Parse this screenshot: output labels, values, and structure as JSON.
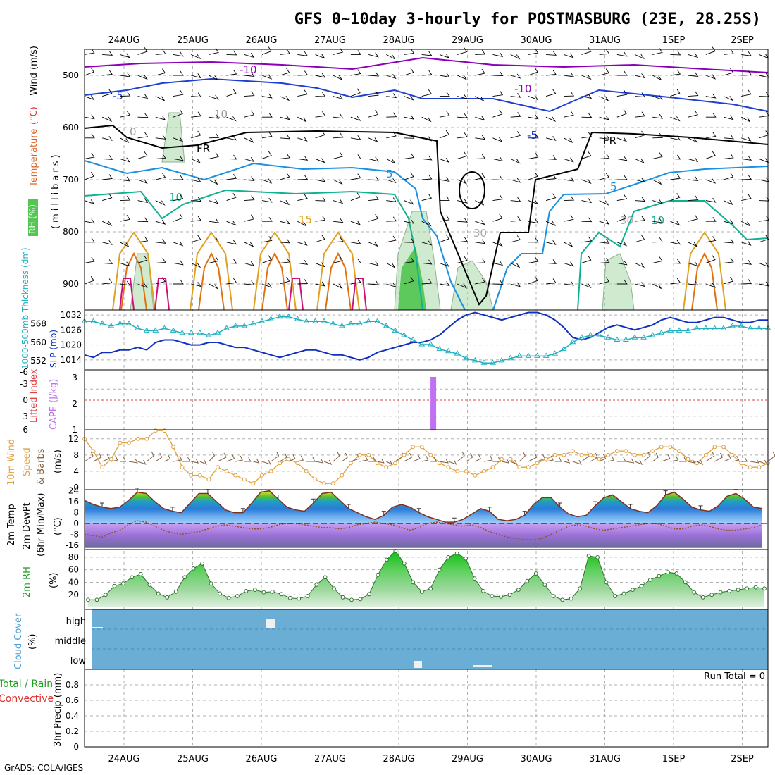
{
  "title": "GFS 0~10day 3-hourly for POSTMASBURG (23E, 28.25S)",
  "credit": "GrADS: COLA/IGES",
  "colors": {
    "temp_m10": "#8a00b8",
    "temp_m5": "#1e3fd0",
    "temp_5": "#1a90e0",
    "temp_10": "#10b090",
    "temp_15": "#e0a020",
    "temp_20": "#e07010",
    "temp_25": "#d0107a",
    "rh": "#40c040",
    "slp": "#1030c0",
    "thickness": "#20b0c0",
    "cape": "#c070f0",
    "li": "#e04040",
    "wind": "#e0a040",
    "barb": "#806040",
    "cloud": "#6aaed6",
    "rain": "#40c040",
    "conv": "#e03030"
  },
  "chart_data": [
    {
      "type": "line",
      "panel": "upper-air",
      "ylabel_temperature": "Temperature",
      "ylabel_unit": "(°C)",
      "ylabel_wind": "Wind (m/s)",
      "ylabel_rh": "RH (%)",
      "ylabel_pressure": "(millibars)",
      "ylim": [
        950,
        450
      ],
      "yticks": [
        "500",
        "600",
        "700",
        "800",
        "900"
      ],
      "contour_labels": [
        "-10",
        "-10",
        "-5",
        "-5",
        "5",
        "5",
        "10",
        "15",
        "10",
        "10",
        "FR",
        "FR",
        "0",
        "10",
        "30",
        "30"
      ],
      "x_dates": [
        "24AUG",
        "25AUG",
        "26AUG",
        "27AUG",
        "28AUG",
        "29AUG",
        "30AUG",
        "31AUG",
        "1SEP",
        "2SEP"
      ]
    },
    {
      "type": "line",
      "panel": "slp-thickness",
      "ylabel_thickness": "1000-500mb Thickness (dm)",
      "ylabel_slp": "SLP (mb)",
      "yticks_thickness": [
        "568",
        "560",
        "552"
      ],
      "yticks_slp": [
        "1032",
        "1026",
        "1020",
        "1014"
      ],
      "series": [
        {
          "name": "SLP",
          "values": [
            1016,
            1015,
            1017,
            1017,
            1018,
            1018,
            1019,
            1018,
            1021,
            1022,
            1022,
            1021,
            1020,
            1020,
            1021,
            1021,
            1020,
            1019,
            1019,
            1018,
            1017,
            1016,
            1015,
            1016,
            1017,
            1018,
            1018,
            1017,
            1016,
            1016,
            1015,
            1014,
            1015,
            1017,
            1018,
            1019,
            1020,
            1021,
            1021,
            1022,
            1024,
            1027,
            1030,
            1032,
            1033,
            1032,
            1031,
            1030,
            1031,
            1032,
            1033,
            1033,
            1032,
            1030,
            1027,
            1023,
            1022,
            1023,
            1025,
            1027,
            1028,
            1027,
            1026,
            1027,
            1028,
            1030,
            1031,
            1030,
            1029,
            1029,
            1030,
            1031,
            1031,
            1030,
            1029,
            1029,
            1030,
            1030
          ]
        },
        {
          "name": "Thickness",
          "values": [
            569,
            569,
            568,
            567,
            568,
            568,
            566,
            565,
            565,
            566,
            565,
            564,
            564,
            564,
            563,
            564,
            566,
            567,
            567,
            568,
            569,
            570,
            571,
            571,
            570,
            569,
            569,
            569,
            568,
            567,
            568,
            568,
            569,
            569,
            567,
            565,
            563,
            561,
            559,
            559,
            557,
            556,
            555,
            553,
            552,
            551,
            551,
            552,
            553,
            554,
            554,
            554,
            554,
            555,
            557,
            560,
            562,
            563,
            563,
            562,
            561,
            561,
            562,
            562,
            563,
            564,
            565,
            565,
            565,
            566,
            566,
            566,
            566,
            567,
            567,
            566,
            566,
            566
          ]
        }
      ]
    },
    {
      "type": "bar",
      "panel": "cape-li",
      "ylabel_li": "Lifted Index",
      "ylabel_cape": "CAPE (J/kg)",
      "yticks_li": [
        "-6",
        "-3",
        "0",
        "3",
        "6"
      ],
      "yticks_cape": [
        "3",
        "2",
        "1"
      ],
      "cape_x": 39.3,
      "cape_value": 3,
      "li_value": 0
    },
    {
      "type": "line",
      "panel": "10m-wind",
      "ylabel_1": "10m Wind",
      "ylabel_2": "Speed",
      "ylabel_3": "& Barbs",
      "ylabel_unit": "(m/s)",
      "ylim": [
        0,
        12
      ],
      "yticks": [
        "0",
        "4",
        "8",
        "12"
      ],
      "series": [
        {
          "name": "Speed",
          "values": [
            12,
            9,
            5,
            7,
            11,
            11,
            12,
            12,
            14,
            14,
            10,
            5,
            3,
            3,
            2,
            5,
            4,
            3,
            2,
            1,
            3,
            4,
            6,
            7,
            6,
            4,
            2,
            1,
            1,
            3,
            6,
            8,
            8,
            6,
            5,
            6,
            8,
            10,
            10,
            8,
            6,
            5,
            4,
            4,
            3,
            4,
            5,
            7,
            7,
            5,
            5,
            6,
            7,
            8,
            8,
            9,
            8,
            8,
            7,
            8,
            9,
            9,
            8,
            8,
            9,
            10,
            10,
            9,
            7,
            6,
            8,
            10,
            10,
            8,
            6,
            5,
            5,
            6
          ]
        }
      ]
    },
    {
      "type": "area",
      "panel": "2m-temp",
      "ylabel_1": "2m Temp",
      "ylabel_2": "2m DewPt",
      "ylabel_3": "(6hr Min/Max)",
      "ylabel_unit": "(°C)",
      "ylim": [
        -16,
        24
      ],
      "yticks": [
        "24",
        "16",
        "8",
        "0",
        "-8",
        "-16"
      ],
      "series": [
        {
          "name": "Temp",
          "values": [
            17,
            14,
            12,
            11,
            12,
            17,
            23,
            22,
            16,
            11,
            9,
            8,
            15,
            22,
            22,
            16,
            10,
            8,
            8,
            15,
            23,
            24,
            18,
            12,
            10,
            9,
            15,
            22,
            23,
            17,
            11,
            8,
            5,
            3,
            6,
            12,
            14,
            12,
            8,
            5,
            3,
            1,
            1,
            3,
            7,
            11,
            9,
            3,
            2,
            3,
            6,
            14,
            19,
            19,
            12,
            7,
            5,
            6,
            13,
            19,
            21,
            16,
            11,
            9,
            8,
            13,
            21,
            23,
            18,
            12,
            10,
            9,
            13,
            20,
            22,
            18,
            12,
            11
          ]
        },
        {
          "name": "DewPt",
          "values": [
            -8,
            -9,
            -10,
            -7,
            -5,
            -1,
            2,
            1,
            -2,
            -5,
            -7,
            -8,
            -7,
            -6,
            -4,
            -2,
            -1,
            -2,
            -3,
            -4,
            -4,
            -3,
            -1,
            0,
            0,
            -1,
            -2,
            -3,
            -3,
            -4,
            -3,
            -1,
            0,
            1,
            0,
            -1,
            -3,
            -5,
            -3,
            0,
            1,
            0,
            -1,
            -2,
            -1,
            -3,
            -6,
            -8,
            -10,
            -11,
            -12,
            -12,
            -11,
            -8,
            -5,
            -2,
            -1,
            -2,
            -4,
            -5,
            -4,
            -3,
            -2,
            -1,
            0,
            0,
            -2,
            -4,
            -4,
            -2,
            -1,
            -2,
            -4,
            -5,
            -5,
            -4,
            -3,
            -1
          ]
        }
      ]
    },
    {
      "type": "area",
      "panel": "2m-rh",
      "ylabel": "2m RH",
      "ylabel_unit": "(%)",
      "ylim": [
        0,
        90
      ],
      "yticks": [
        "20",
        "40",
        "60",
        "80"
      ],
      "series": [
        {
          "name": "RH",
          "values": [
            12,
            12,
            20,
            34,
            38,
            48,
            53,
            36,
            22,
            16,
            25,
            48,
            62,
            70,
            38,
            22,
            15,
            18,
            26,
            28,
            24,
            25,
            21,
            15,
            14,
            18,
            36,
            48,
            30,
            16,
            12,
            13,
            21,
            52,
            76,
            90,
            70,
            40,
            25,
            30,
            60,
            80,
            86,
            78,
            46,
            26,
            18,
            17,
            20,
            28,
            42,
            54,
            36,
            18,
            12,
            14,
            30,
            82,
            80,
            40,
            18,
            22,
            28,
            34,
            44,
            50,
            56,
            54,
            40,
            24,
            16,
            20,
            24,
            26,
            28,
            30,
            32,
            30
          ]
        }
      ]
    },
    {
      "type": "heatmap",
      "panel": "cloud-cover",
      "ylabel": "Cloud Cover",
      "ylabel_unit": "(%)",
      "levels": [
        "high",
        "middle",
        "low"
      ]
    },
    {
      "type": "bar",
      "panel": "precip",
      "ylabel_1": "Total / Rain",
      "ylabel_2": "Convective",
      "ylabel_3": "3hr Precip (mm)",
      "ylim": [
        0,
        1
      ],
      "yticks": [
        "0",
        "0.2",
        "0.4",
        "0.6",
        "0.8"
      ],
      "run_total": "Run Total = 0",
      "values": []
    }
  ]
}
